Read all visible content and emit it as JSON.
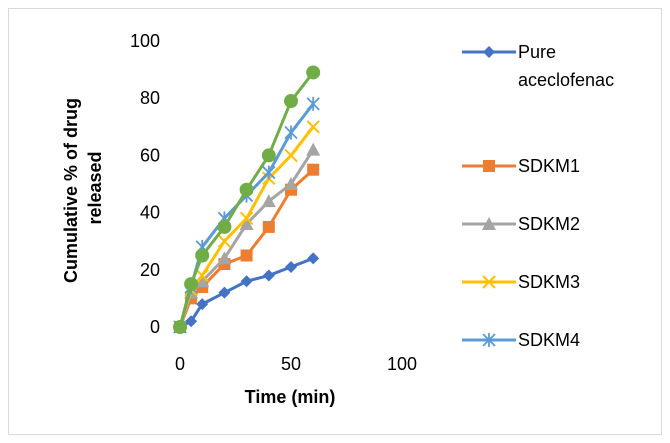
{
  "chart_data": {
    "type": "line",
    "title": "",
    "xlabel": "Time (min)",
    "ylabel": "Cumulative % of drug released",
    "xlim": [
      0,
      100
    ],
    "ylim": [
      0,
      100
    ],
    "xticks": [
      0,
      50,
      100
    ],
    "yticks": [
      0,
      20,
      40,
      60,
      80,
      100
    ],
    "grid": false,
    "legend_position": "right",
    "x": [
      0,
      5,
      10,
      20,
      30,
      40,
      50,
      60
    ],
    "series": [
      {
        "name": "Pure aceclofenac",
        "color": "#4472c4",
        "marker": "diamond",
        "values": [
          0,
          2,
          8,
          12,
          16,
          18,
          21,
          24
        ]
      },
      {
        "name": "SDKM1",
        "color": "#ed7d31",
        "marker": "square",
        "values": [
          0,
          10,
          14,
          22,
          25,
          35,
          48,
          55
        ]
      },
      {
        "name": "SDKM2",
        "color": "#a5a5a5",
        "marker": "triangle",
        "values": [
          0,
          12,
          16,
          24,
          36,
          44,
          50,
          62
        ]
      },
      {
        "name": "SDKM3",
        "color": "#ffc000",
        "marker": "x",
        "values": [
          0,
          13,
          18,
          30,
          38,
          52,
          60,
          70
        ]
      },
      {
        "name": "SDKM4",
        "color": "#5b9bd5",
        "marker": "star",
        "values": [
          0,
          14,
          28,
          38,
          46,
          54,
          68,
          78
        ]
      },
      {
        "name": "",
        "color": "#70ad47",
        "marker": "circle",
        "values": [
          0,
          15,
          25,
          35,
          48,
          60,
          79,
          89
        ]
      }
    ],
    "legend": [
      {
        "label_lines": [
          "Pure",
          "aceclofenac"
        ]
      },
      {
        "label_lines": [
          "SDKM1"
        ]
      },
      {
        "label_lines": [
          "SDKM2"
        ]
      },
      {
        "label_lines": [
          "SDKM3"
        ]
      },
      {
        "label_lines": [
          "SDKM4"
        ]
      }
    ]
  }
}
